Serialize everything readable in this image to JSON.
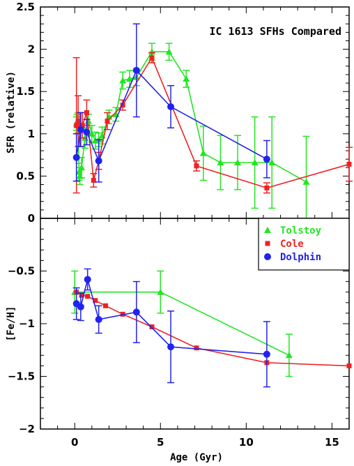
{
  "chart_data": [
    {
      "type": "line",
      "title": "IC 1613 SFHs Compared",
      "xlabel": "",
      "ylabel": "SFR (relative)",
      "xlim": [
        -2,
        16
      ],
      "ylim": [
        0,
        2.5
      ],
      "yticks": [
        0,
        0.5,
        1,
        1.5,
        2,
        2.5
      ],
      "ytick_labels": [
        "0",
        "0.5",
        "1",
        "1.5",
        "2",
        "2.5"
      ],
      "xticks": [
        0,
        5,
        10,
        15
      ],
      "grid": false,
      "series": [
        {
          "name": "Tolstoy",
          "color": "#22e622",
          "marker": "triangle",
          "points": [
            {
              "x": 0.1,
              "y": 1.12,
              "err": 0.08
            },
            {
              "x": 0.15,
              "y": 1.15,
              "err": 0.08
            },
            {
              "x": 0.2,
              "y": 1.13,
              "err": 0.12
            },
            {
              "x": 0.25,
              "y": 0.55,
              "err": 0.1
            },
            {
              "x": 0.3,
              "y": 0.5,
              "err": 0.1
            },
            {
              "x": 0.4,
              "y": 0.6,
              "err": 0.12
            },
            {
              "x": 0.6,
              "y": 0.95,
              "err": 0.12
            },
            {
              "x": 0.8,
              "y": 1.15,
              "err": 0.08
            },
            {
              "x": 1.0,
              "y": 1.0,
              "err": 0.1
            },
            {
              "x": 1.2,
              "y": 0.92,
              "err": 0.1
            },
            {
              "x": 1.4,
              "y": 0.93,
              "err": 0.08
            },
            {
              "x": 1.6,
              "y": 0.98,
              "err": 0.1
            },
            {
              "x": 2.0,
              "y": 1.2,
              "err": 0.08
            },
            {
              "x": 2.4,
              "y": 1.23,
              "err": 0.08
            },
            {
              "x": 2.8,
              "y": 1.63,
              "err": 0.1
            },
            {
              "x": 3.2,
              "y": 1.65,
              "err": 0.1
            },
            {
              "x": 3.6,
              "y": 1.67,
              "err": 0.1
            },
            {
              "x": 4.5,
              "y": 1.97,
              "err": 0.1
            },
            {
              "x": 5.5,
              "y": 1.97,
              "err": 0.1
            },
            {
              "x": 6.5,
              "y": 1.65,
              "err": 0.1
            },
            {
              "x": 7.5,
              "y": 0.77,
              "err": 0.32
            },
            {
              "x": 8.5,
              "y": 0.66,
              "err": 0.32
            },
            {
              "x": 9.5,
              "y": 0.66,
              "err": 0.32
            },
            {
              "x": 10.5,
              "y": 0.66,
              "err": 0.54
            },
            {
              "x": 11.5,
              "y": 0.66,
              "err": 0.54
            },
            {
              "x": 13.5,
              "y": 0.43,
              "err": 0.54
            }
          ]
        },
        {
          "name": "Cole",
          "color": "#ee2222",
          "marker": "square",
          "points": [
            {
              "x": 0.1,
              "y": 1.1,
              "err": 0.8
            },
            {
              "x": 0.2,
              "y": 1.15,
              "err": 0.3
            },
            {
              "x": 0.3,
              "y": 1.05,
              "err": 0.2
            },
            {
              "x": 0.45,
              "y": 1.1,
              "err": 0.15
            },
            {
              "x": 0.7,
              "y": 1.25,
              "err": 0.15
            },
            {
              "x": 1.1,
              "y": 0.45,
              "err": 0.08
            },
            {
              "x": 1.4,
              "y": 0.68,
              "err": 0.1
            },
            {
              "x": 1.9,
              "y": 1.15,
              "err": 0.1
            },
            {
              "x": 2.8,
              "y": 1.34,
              "err": 0.06
            },
            {
              "x": 4.5,
              "y": 1.9,
              "err": 0.06
            },
            {
              "x": 7.1,
              "y": 0.62,
              "err": 0.06
            },
            {
              "x": 11.2,
              "y": 0.36,
              "err": 0.06
            },
            {
              "x": 16.0,
              "y": 0.64,
              "err": 0.2
            }
          ]
        },
        {
          "name": "Dolphin",
          "color": "#2222ee",
          "marker": "circle",
          "points": [
            {
              "x": 0.1,
              "y": 0.72,
              "err": 0.28
            },
            {
              "x": 0.35,
              "y": 1.05,
              "err": 0.2
            },
            {
              "x": 0.7,
              "y": 1.02,
              "err": 0.15
            },
            {
              "x": 1.4,
              "y": 0.68,
              "err": 0.25
            },
            {
              "x": 3.6,
              "y": 1.75,
              "err": 0.55
            },
            {
              "x": 5.6,
              "y": 1.32,
              "err": 0.25
            },
            {
              "x": 11.2,
              "y": 0.7,
              "err": 0.22
            }
          ]
        }
      ]
    },
    {
      "type": "line",
      "title": "",
      "xlabel": "Age (Gyr)",
      "ylabel": "[Fe/H]",
      "xlim": [
        -2,
        16
      ],
      "ylim": [
        -2,
        0
      ],
      "yticks": [
        -2,
        -1.5,
        -1,
        -0.5
      ],
      "ytick_labels": [
        "−2",
        "−1.5",
        "−1",
        "−0.5"
      ],
      "xticks": [
        0,
        5,
        10,
        15
      ],
      "xtick_labels": [
        "0",
        "5",
        "10",
        "15"
      ],
      "grid": false,
      "legend": "top-right",
      "series": [
        {
          "name": "Tolstoy",
          "color": "#22e622",
          "marker": "triangle",
          "points": [
            {
              "x": 0.0,
              "y": -0.7,
              "err": 0.2
            },
            {
              "x": 5.0,
              "y": -0.7,
              "err": 0.2
            },
            {
              "x": 12.5,
              "y": -1.3,
              "err": 0.2
            }
          ]
        },
        {
          "name": "Cole",
          "color": "#ee2222",
          "marker": "square",
          "points": [
            {
              "x": 0.1,
              "y": -0.7
            },
            {
              "x": 0.4,
              "y": -0.73
            },
            {
              "x": 0.75,
              "y": -0.74
            },
            {
              "x": 1.2,
              "y": -0.78
            },
            {
              "x": 1.8,
              "y": -0.83
            },
            {
              "x": 2.8,
              "y": -0.91
            },
            {
              "x": 4.5,
              "y": -1.03
            },
            {
              "x": 7.1,
              "y": -1.23
            },
            {
              "x": 11.2,
              "y": -1.37
            },
            {
              "x": 16.0,
              "y": -1.4
            }
          ]
        },
        {
          "name": "Dolphin",
          "color": "#2222ee",
          "marker": "circle",
          "points": [
            {
              "x": 0.1,
              "y": -0.81,
              "err": 0.15
            },
            {
              "x": 0.35,
              "y": -0.84,
              "err": 0.13
            },
            {
              "x": 0.75,
              "y": -0.58,
              "err": 0.1
            },
            {
              "x": 1.4,
              "y": -0.96,
              "err": 0.13
            },
            {
              "x": 3.6,
              "y": -0.89,
              "err": 0.29
            },
            {
              "x": 5.6,
              "y": -1.22,
              "err": 0.34
            },
            {
              "x": 11.2,
              "y": -1.29,
              "err": 0.31
            }
          ]
        }
      ]
    }
  ]
}
